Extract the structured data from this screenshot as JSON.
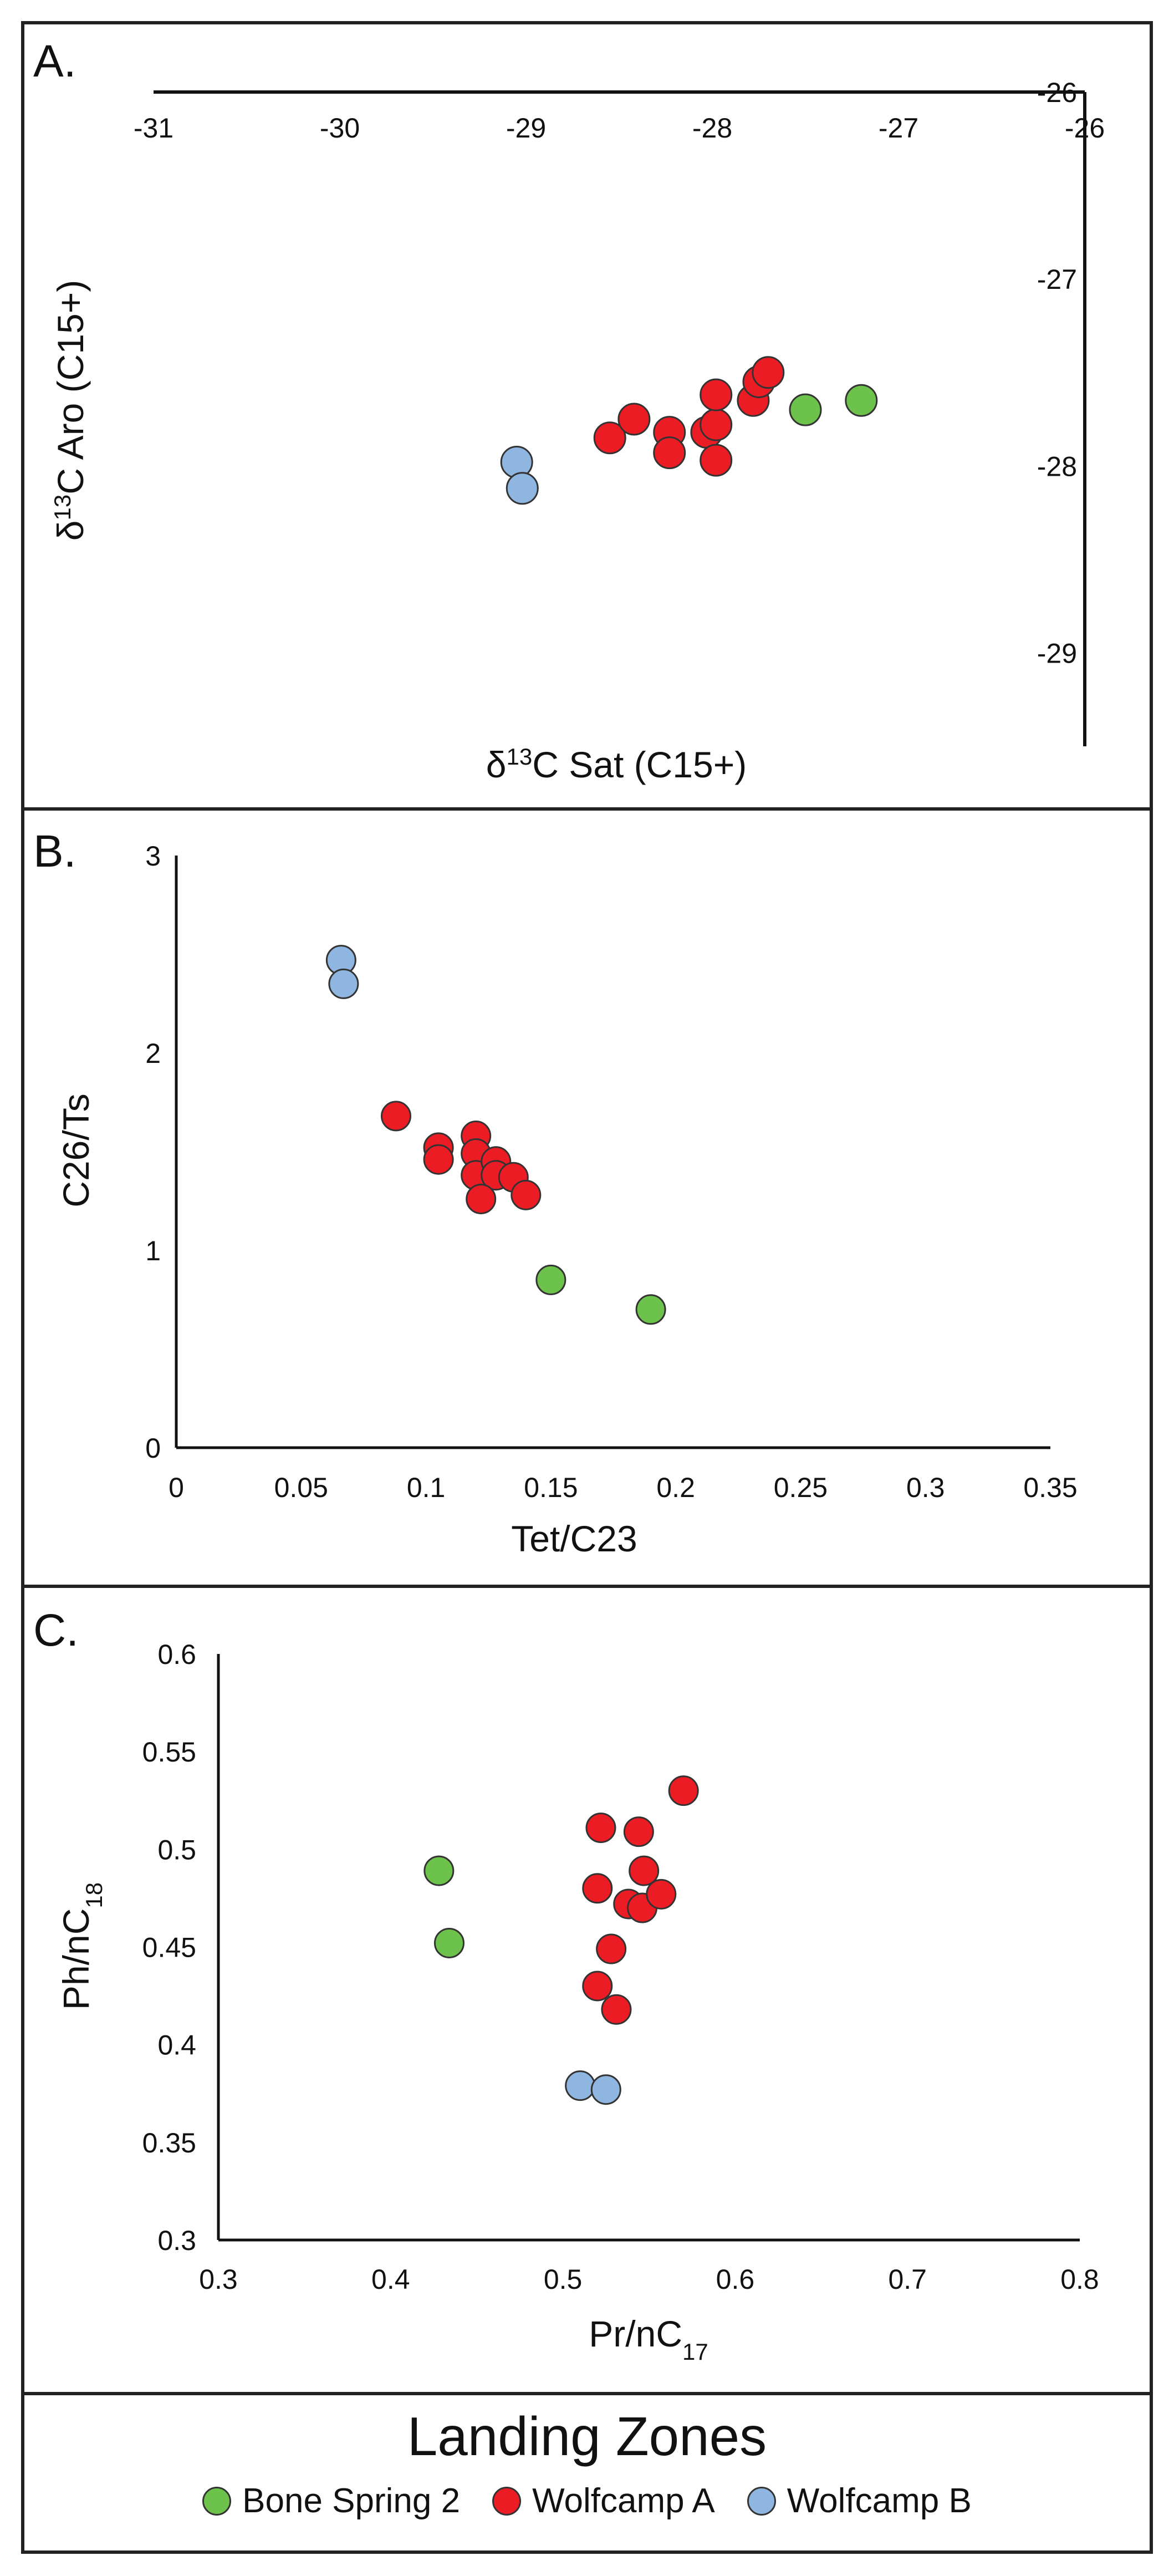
{
  "legend": {
    "title": "Landing Zones",
    "items": [
      {
        "label": "Bone Spring 2",
        "color": "#6cc24a"
      },
      {
        "label": "Wolfcamp A",
        "color": "#ec1c24"
      },
      {
        "label": "Wolfcamp B",
        "color": "#8fb6e0"
      }
    ]
  },
  "chart_data": [
    {
      "panel": "A.",
      "type": "scatter",
      "xlabel": "δ13C Sat (C15+)",
      "ylabel": "δ13C Aro (C15+)",
      "xlim": [
        -31,
        -26
      ],
      "ylim": [
        -29.5,
        -26
      ],
      "x_ticks": [
        -31,
        -30,
        -29,
        -28,
        -27,
        -26
      ],
      "y_ticks": [
        -26,
        -27,
        -28,
        -29
      ],
      "series": [
        {
          "name": "Bone Spring 2",
          "points": [
            [
              -27.5,
              -27.7
            ],
            [
              -27.2,
              -27.65
            ]
          ]
        },
        {
          "name": "Wolfcamp A",
          "points": [
            [
              -28.55,
              -27.85
            ],
            [
              -28.42,
              -27.75
            ],
            [
              -28.23,
              -27.82
            ],
            [
              -28.23,
              -27.93
            ],
            [
              -28.03,
              -27.82
            ],
            [
              -27.98,
              -27.78
            ],
            [
              -27.98,
              -27.62
            ],
            [
              -27.98,
              -27.97
            ],
            [
              -27.78,
              -27.65
            ],
            [
              -27.75,
              -27.55
            ],
            [
              -27.7,
              -27.5
            ]
          ]
        },
        {
          "name": "Wolfcamp B",
          "points": [
            [
              -29.05,
              -27.98
            ],
            [
              -29.02,
              -28.12
            ]
          ]
        }
      ]
    },
    {
      "panel": "B.",
      "type": "scatter",
      "xlabel": "Tet/C23",
      "ylabel": "C26/Ts",
      "xlim": [
        0,
        0.35
      ],
      "ylim": [
        0,
        3
      ],
      "x_ticks": [
        "0",
        "0.05",
        "0.1",
        "0.15",
        "0.2",
        "0.25",
        "0.3",
        "0.35"
      ],
      "y_ticks": [
        "0",
        "1",
        "2",
        "3"
      ],
      "series": [
        {
          "name": "Bone Spring 2",
          "points": [
            [
              0.15,
              0.85
            ],
            [
              0.19,
              0.7
            ]
          ]
        },
        {
          "name": "Wolfcamp A",
          "points": [
            [
              0.088,
              1.68
            ],
            [
              0.105,
              1.52
            ],
            [
              0.105,
              1.46
            ],
            [
              0.12,
              1.58
            ],
            [
              0.12,
              1.49
            ],
            [
              0.12,
              1.38
            ],
            [
              0.128,
              1.45
            ],
            [
              0.128,
              1.38
            ],
            [
              0.135,
              1.37
            ],
            [
              0.122,
              1.26
            ],
            [
              0.14,
              1.28
            ]
          ]
        },
        {
          "name": "Wolfcamp B",
          "points": [
            [
              0.066,
              2.47
            ],
            [
              0.067,
              2.35
            ]
          ]
        }
      ]
    },
    {
      "panel": "C.",
      "type": "scatter",
      "xlabel": "Pr/nC17",
      "ylabel": "Ph/nC18",
      "xlim": [
        0.3,
        0.8
      ],
      "ylim": [
        0.3,
        0.6
      ],
      "x_ticks": [
        "0.3",
        "0.4",
        "0.5",
        "0.6",
        "0.7",
        "0.8"
      ],
      "y_ticks": [
        "0.3",
        "0.35",
        "0.4",
        "0.45",
        "0.5",
        "0.55",
        "0.6"
      ],
      "series": [
        {
          "name": "Bone Spring 2",
          "points": [
            [
              0.428,
              0.489
            ],
            [
              0.434,
              0.452
            ]
          ]
        },
        {
          "name": "Wolfcamp A",
          "points": [
            [
              0.57,
              0.53
            ],
            [
              0.522,
              0.511
            ],
            [
              0.544,
              0.509
            ],
            [
              0.547,
              0.489
            ],
            [
              0.52,
              0.48
            ],
            [
              0.538,
              0.472
            ],
            [
              0.546,
              0.47
            ],
            [
              0.557,
              0.477
            ],
            [
              0.528,
              0.449
            ],
            [
              0.52,
              0.43
            ],
            [
              0.531,
              0.418
            ]
          ]
        },
        {
          "name": "Wolfcamp B",
          "points": [
            [
              0.51,
              0.379
            ],
            [
              0.525,
              0.377
            ]
          ]
        }
      ]
    }
  ]
}
